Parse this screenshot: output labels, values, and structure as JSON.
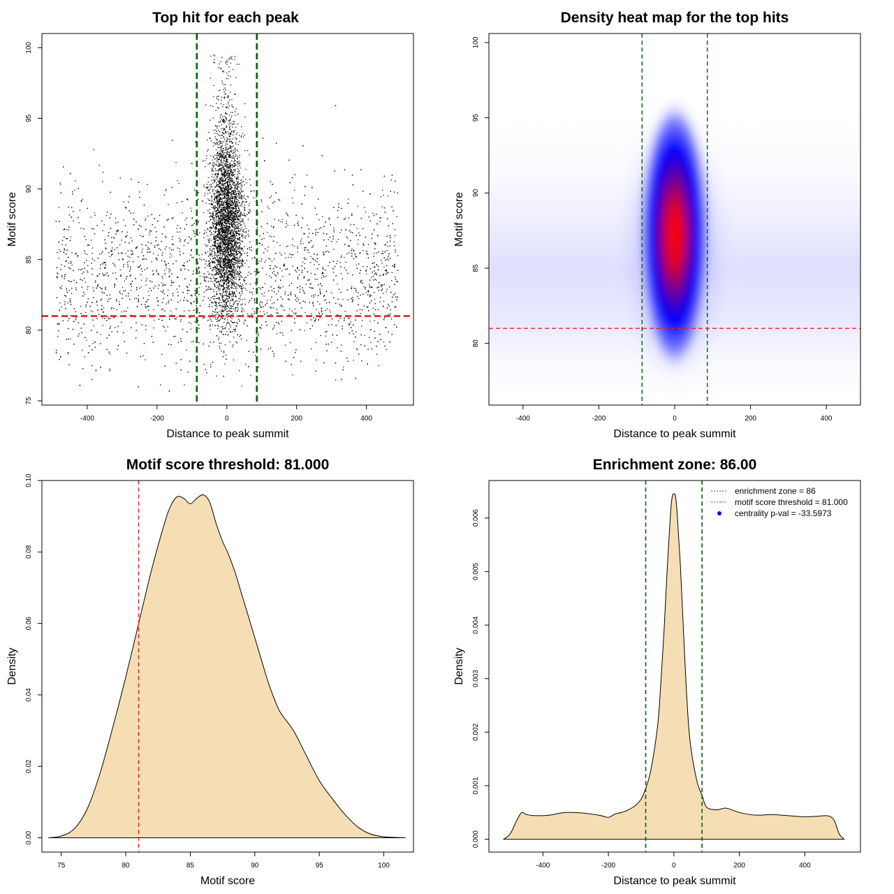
{
  "chart_data": [
    {
      "type": "scatter",
      "title": "Top hit for each peak",
      "xlabel": "Distance to peak summit",
      "ylabel": "Motif score",
      "xlim": [
        -530,
        535
      ],
      "ylim": [
        74.7,
        101
      ],
      "xticks": [
        "-400",
        "-200",
        "0",
        "200",
        "400"
      ],
      "yticks": [
        "75",
        "80",
        "85",
        "90",
        "95",
        "100"
      ],
      "point_color": "#000000",
      "vlines": [
        -86,
        86
      ],
      "vline_color": "#006400",
      "hline": 81.0,
      "hline_color": "#dd2222",
      "grid": false
    },
    {
      "type": "heatmap",
      "title": "Density heat map for the top hits",
      "xlabel": "Distance to peak summit",
      "ylabel": "Motif score",
      "xlim": [
        -490,
        490
      ],
      "ylim": [
        75.9,
        100.6
      ],
      "xticks": [
        "-400",
        "-200",
        "0",
        "200",
        "400"
      ],
      "yticks": [
        "80",
        "85",
        "90",
        "95",
        "100"
      ],
      "colors": [
        "#ffffff",
        "#0000ff",
        "#ff0000"
      ],
      "peak_center": [
        0,
        86.8
      ],
      "vlines": [
        -86,
        86
      ],
      "vline_color": "#006400",
      "hline": 81.0,
      "hline_color": "#dd2222",
      "grid": false
    },
    {
      "type": "area",
      "title": "Motif score threshold: 81.000",
      "xlabel": "Motif score",
      "ylabel": "Density",
      "xlim": [
        73.5,
        102.3
      ],
      "ylim": [
        -0.004,
        0.1
      ],
      "xticks": [
        "75",
        "80",
        "85",
        "90",
        "95",
        "100"
      ],
      "yticks": [
        "0.00",
        "0.02",
        "0.04",
        "0.06",
        "0.08",
        "0.10"
      ],
      "fill_color": "#f5deb3",
      "x": [
        74,
        75,
        76,
        77,
        78,
        79,
        80,
        81,
        82,
        83,
        83.5,
        84,
        84.5,
        85,
        85.5,
        86,
        86.5,
        87,
        87.5,
        88,
        88.5,
        89,
        89.5,
        90,
        90.5,
        91,
        91.5,
        92,
        93,
        94,
        95,
        96,
        97,
        98,
        99,
        100,
        101,
        101.7
      ],
      "values": [
        0.0,
        0.0005,
        0.0025,
        0.008,
        0.018,
        0.031,
        0.045,
        0.06,
        0.075,
        0.088,
        0.093,
        0.0955,
        0.095,
        0.0935,
        0.095,
        0.096,
        0.094,
        0.088,
        0.083,
        0.079,
        0.074,
        0.068,
        0.062,
        0.056,
        0.05,
        0.044,
        0.039,
        0.035,
        0.03,
        0.023,
        0.016,
        0.011,
        0.0065,
        0.003,
        0.001,
        0.0003,
        0.0001,
        0.0
      ],
      "vline": 81.0,
      "vline_color": "#dd2222",
      "grid": false
    },
    {
      "type": "area",
      "title": "Enrichment zone: 86.00",
      "xlabel": "Distance to peak summit",
      "ylabel": "Density",
      "xlim": [
        -565,
        570
      ],
      "ylim": [
        -0.00024,
        0.0067
      ],
      "xticks": [
        "-400",
        "-200",
        "0",
        "200",
        "400"
      ],
      "yticks": [
        "0.000",
        "0.001",
        "0.002",
        "0.003",
        "0.004",
        "0.005",
        "0.006"
      ],
      "fill_color": "#f5deb3",
      "x": [
        -520,
        -500,
        -480,
        -465,
        -450,
        -420,
        -380,
        -330,
        -280,
        -230,
        -200,
        -180,
        -150,
        -120,
        -100,
        -86,
        -70,
        -50,
        -40,
        -30,
        -20,
        -10,
        -5,
        0,
        5,
        10,
        20,
        30,
        40,
        50,
        70,
        86,
        100,
        130,
        160,
        200,
        250,
        300,
        350,
        400,
        440,
        460,
        475,
        490,
        505,
        520
      ],
      "values": [
        0.0,
        0.0001,
        0.00035,
        0.0005,
        0.00046,
        0.00044,
        0.00045,
        0.0005,
        0.00049,
        0.00045,
        0.00041,
        0.00047,
        0.00052,
        0.00062,
        0.00075,
        0.00095,
        0.0013,
        0.0021,
        0.0029,
        0.0039,
        0.0051,
        0.0061,
        0.0064,
        0.00645,
        0.0064,
        0.0061,
        0.0051,
        0.0038,
        0.0026,
        0.0018,
        0.0011,
        0.00082,
        0.0006,
        0.00055,
        0.00058,
        0.0005,
        0.00045,
        0.00046,
        0.00044,
        0.00042,
        0.00043,
        0.00044,
        0.00043,
        0.00035,
        0.0001,
        0.0
      ],
      "vlines": [
        -86,
        86
      ],
      "vline_color": "#006400",
      "legend_position": "top-right",
      "legend": [
        {
          "label": "enrichment zone = 86",
          "color": "#006400",
          "kind": "line"
        },
        {
          "label": "motif score threshold = 81.000",
          "color": "#dd2222",
          "kind": "line"
        },
        {
          "label": "centrality p-val = -33.5973",
          "color": "#0000ff",
          "kind": "point"
        }
      ],
      "grid": false
    }
  ]
}
